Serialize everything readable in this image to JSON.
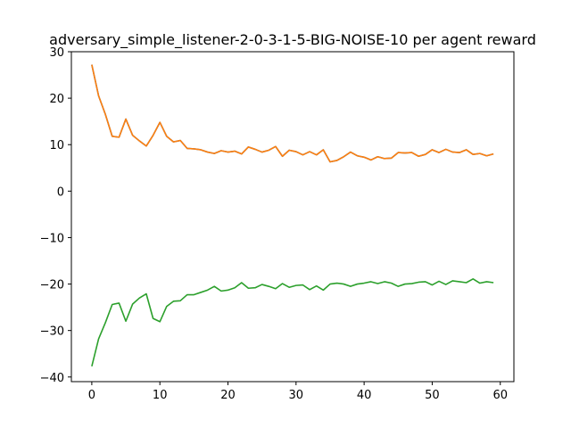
{
  "chart_data": {
    "type": "line",
    "title": "adversary_simple_listener-2-0-3-1-5-BIG-NOISE-10 per agent reward",
    "xlabel": "",
    "ylabel": "",
    "xlim": [
      -3,
      62
    ],
    "ylim": [
      -41,
      30
    ],
    "xticks": [
      0,
      10,
      20,
      30,
      40,
      50,
      60
    ],
    "yticks": [
      -40,
      -30,
      -20,
      -10,
      0,
      10,
      20,
      30
    ],
    "grid": false,
    "legend": "none",
    "x": [
      0,
      1,
      2,
      3,
      4,
      5,
      6,
      7,
      8,
      9,
      10,
      11,
      12,
      13,
      14,
      15,
      16,
      17,
      18,
      19,
      20,
      21,
      22,
      23,
      24,
      25,
      26,
      27,
      28,
      29,
      30,
      31,
      32,
      33,
      34,
      35,
      36,
      37,
      38,
      39,
      40,
      41,
      42,
      43,
      44,
      45,
      46,
      47,
      48,
      49,
      50,
      51,
      52,
      53,
      54,
      55,
      56,
      57,
      58,
      59
    ],
    "series": [
      {
        "color": "#1f77b4",
        "values": [
          27.2,
          20.5,
          16.5,
          11.8,
          11.6,
          15.5,
          12.0,
          10.8,
          9.7,
          12.0,
          14.8,
          11.8,
          10.6,
          10.9,
          9.2,
          9.1,
          8.9,
          8.4,
          8.1,
          8.7,
          8.4,
          8.6,
          8.0,
          9.5,
          9.0,
          8.4,
          8.8,
          9.6,
          7.5,
          8.8,
          8.5,
          7.8,
          8.5,
          7.8,
          8.9,
          6.3,
          6.6,
          7.4,
          8.4,
          7.6,
          7.3,
          6.7,
          7.4,
          7.0,
          7.1,
          8.3,
          8.2,
          8.3,
          7.5,
          7.9,
          8.9,
          8.3,
          9.0,
          8.4,
          8.3,
          8.9,
          7.9,
          8.1,
          7.6,
          8.0
        ]
      },
      {
        "color": "#ff7f0e",
        "values": [
          27.2,
          20.5,
          16.5,
          11.8,
          11.6,
          15.5,
          12.0,
          10.8,
          9.7,
          12.0,
          14.8,
          11.8,
          10.6,
          10.9,
          9.2,
          9.1,
          8.9,
          8.4,
          8.1,
          8.7,
          8.4,
          8.6,
          8.0,
          9.5,
          9.0,
          8.4,
          8.8,
          9.6,
          7.5,
          8.8,
          8.5,
          7.8,
          8.5,
          7.8,
          8.9,
          6.3,
          6.6,
          7.4,
          8.4,
          7.6,
          7.3,
          6.7,
          7.4,
          7.0,
          7.1,
          8.3,
          8.2,
          8.3,
          7.5,
          7.9,
          8.9,
          8.3,
          9.0,
          8.4,
          8.3,
          8.9,
          7.9,
          8.1,
          7.6,
          8.0
        ]
      },
      {
        "color": "#2ca02c",
        "values": [
          -37.7,
          -31.8,
          -28.3,
          -24.4,
          -24.1,
          -28.0,
          -24.3,
          -23.0,
          -22.1,
          -27.4,
          -28.1,
          -24.8,
          -23.7,
          -23.6,
          -22.3,
          -22.3,
          -21.8,
          -21.3,
          -20.5,
          -21.5,
          -21.3,
          -20.8,
          -19.7,
          -20.9,
          -20.8,
          -20.1,
          -20.5,
          -21.0,
          -19.9,
          -20.7,
          -20.3,
          -20.2,
          -21.2,
          -20.4,
          -21.3,
          -20.0,
          -19.8,
          -20.0,
          -20.5,
          -20.0,
          -19.8,
          -19.5,
          -19.9,
          -19.5,
          -19.8,
          -20.5,
          -20.0,
          -19.9,
          -19.6,
          -19.5,
          -20.2,
          -19.4,
          -20.1,
          -19.3,
          -19.5,
          -19.7,
          -18.9,
          -19.8,
          -19.5,
          -19.7
        ]
      }
    ]
  }
}
